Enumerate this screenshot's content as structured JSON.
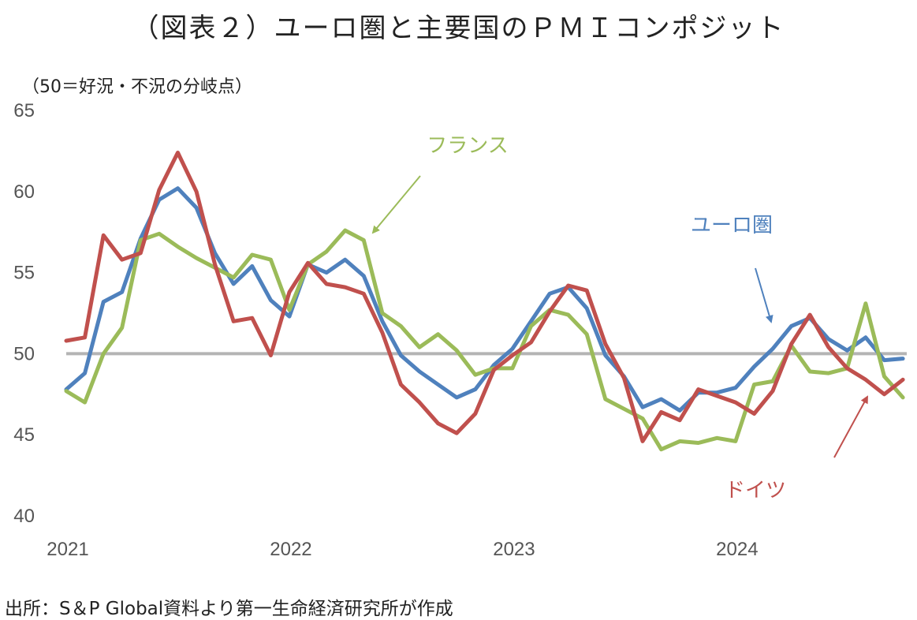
{
  "title": "（図表２）ユーロ圏と主要国のＰＭＩコンポジット",
  "unit_label": "（50＝好況・不況の分岐点）",
  "source": "出所：S＆P Global資料より第一生命経済研究所が作成",
  "chart_data": {
    "type": "line",
    "ylim": [
      40,
      65
    ],
    "yticks": [
      "40",
      "45",
      "50",
      "55",
      "60",
      "65"
    ],
    "x_ticks": [
      "2021",
      "2022",
      "2023",
      "2024"
    ],
    "x_range_months": "2021-01 to 2024-10",
    "reference_line": 50,
    "grid": false,
    "series": [
      {
        "name": "ユーロ圏",
        "color": "#4f81bd",
        "values": [
          47.8,
          48.8,
          53.2,
          53.8,
          57.1,
          59.5,
          60.2,
          59.0,
          56.2,
          54.3,
          55.4,
          53.3,
          52.3,
          55.5,
          55.0,
          55.8,
          54.8,
          52.0,
          49.9,
          48.9,
          48.1,
          47.3,
          47.8,
          49.3,
          50.3,
          52.0,
          53.7,
          54.1,
          52.8,
          49.9,
          48.6,
          46.7,
          47.2,
          46.5,
          47.6,
          47.6,
          47.9,
          49.2,
          50.3,
          51.7,
          52.2,
          50.9,
          50.2,
          51.0,
          49.6,
          49.7
        ]
      },
      {
        "name": "フランス",
        "color": "#9bbb59",
        "values": [
          47.7,
          47.0,
          50.0,
          51.6,
          57.0,
          57.4,
          56.6,
          55.9,
          55.3,
          54.7,
          56.1,
          55.8,
          52.7,
          55.5,
          56.3,
          57.6,
          57.0,
          52.5,
          51.7,
          50.4,
          51.2,
          50.2,
          48.7,
          49.1,
          49.1,
          51.7,
          52.7,
          52.4,
          51.2,
          47.2,
          46.6,
          46.0,
          44.1,
          44.6,
          44.5,
          44.8,
          44.6,
          48.1,
          48.3,
          50.5,
          48.9,
          48.8,
          49.1,
          53.1,
          48.6,
          47.3
        ]
      },
      {
        "name": "ドイツ",
        "color": "#c0504d",
        "values": [
          50.8,
          51.0,
          57.3,
          55.8,
          56.2,
          60.1,
          62.4,
          60.0,
          55.5,
          52.0,
          52.2,
          49.9,
          53.8,
          55.6,
          54.3,
          54.1,
          53.7,
          51.3,
          48.1,
          47.0,
          45.7,
          45.1,
          46.3,
          49.0,
          49.9,
          50.7,
          52.6,
          54.2,
          53.9,
          50.6,
          48.5,
          44.6,
          46.4,
          45.9,
          47.8,
          47.4,
          47.0,
          46.3,
          47.7,
          50.6,
          52.4,
          50.4,
          49.1,
          48.4,
          47.5,
          48.4
        ]
      }
    ],
    "annotations": [
      {
        "text": "フランス",
        "series": "フランス"
      },
      {
        "text": "ユーロ圏",
        "series": "ユーロ圏"
      },
      {
        "text": "ドイツ",
        "series": "ドイツ"
      }
    ]
  }
}
